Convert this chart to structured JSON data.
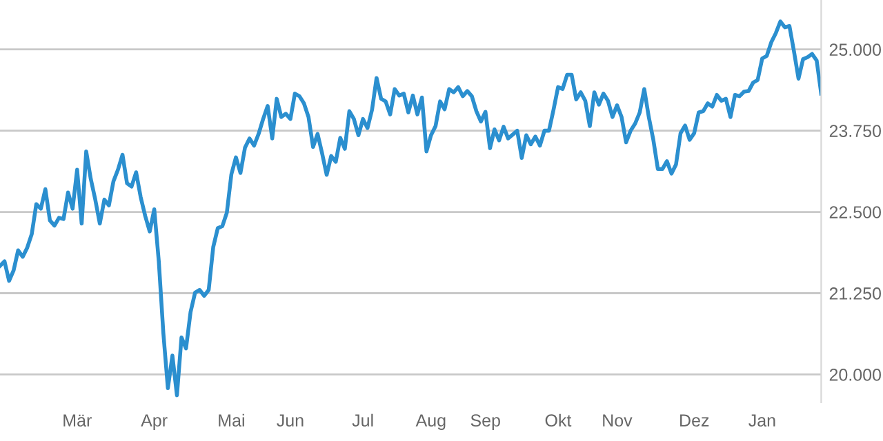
{
  "chart_data": {
    "type": "line",
    "categories": [
      null,
      null,
      null,
      null,
      null,
      null,
      null,
      null,
      null,
      null,
      null,
      null,
      null,
      null,
      null,
      null,
      null,
      "Mär",
      null,
      null,
      null,
      null,
      null,
      null,
      null,
      null,
      null,
      null,
      null,
      null,
      null,
      null,
      null,
      null,
      "Apr",
      null,
      null,
      null,
      null,
      null,
      null,
      null,
      null,
      null,
      null,
      null,
      null,
      null,
      null,
      null,
      null,
      "Mai",
      null,
      null,
      null,
      null,
      null,
      null,
      null,
      null,
      null,
      null,
      null,
      null,
      "Jun",
      null,
      null,
      null,
      null,
      null,
      null,
      null,
      null,
      null,
      null,
      null,
      null,
      null,
      null,
      null,
      "Jul",
      null,
      null,
      null,
      null,
      null,
      null,
      null,
      null,
      null,
      null,
      null,
      null,
      null,
      null,
      "Aug",
      null,
      null,
      null,
      null,
      null,
      null,
      null,
      null,
      null,
      null,
      null,
      "Sep",
      null,
      null,
      null,
      null,
      null,
      null,
      null,
      null,
      null,
      null,
      null,
      null,
      null,
      null,
      null,
      "Okt",
      null,
      null,
      null,
      null,
      null,
      null,
      null,
      null,
      null,
      null,
      null,
      null,
      "Nov",
      null,
      null,
      null,
      null,
      null,
      null,
      null,
      null,
      null,
      null,
      null,
      null,
      null,
      null,
      null,
      null,
      "Dez",
      null,
      null,
      null,
      null,
      null,
      null,
      null,
      null,
      null,
      null,
      null,
      null,
      null,
      null,
      "Jan",
      null,
      null,
      null,
      null,
      null,
      null,
      null,
      null,
      null,
      null,
      null,
      null,
      null
    ],
    "series": [
      {
        "color": "#2b8fcf",
        "values": [
          21670,
          21740,
          21440,
          21600,
          21910,
          21810,
          21950,
          22160,
          22620,
          22550,
          22850,
          22370,
          22290,
          22410,
          22390,
          22800,
          22550,
          23150,
          22320,
          23430,
          23010,
          22690,
          22320,
          22690,
          22600,
          22970,
          23150,
          23380,
          22940,
          22890,
          23110,
          22730,
          22440,
          22200,
          22540,
          21740,
          20640,
          19790,
          20290,
          19680,
          20570,
          20400,
          20960,
          21260,
          21300,
          21210,
          21300,
          21960,
          22250,
          22280,
          22490,
          23080,
          23340,
          23100,
          23490,
          23630,
          23520,
          23700,
          23930,
          24130,
          23630,
          24240,
          23960,
          24010,
          23930,
          24320,
          24280,
          24170,
          23960,
          23500,
          23700,
          23400,
          23070,
          23360,
          23270,
          23640,
          23470,
          24050,
          23930,
          23680,
          23930,
          23790,
          24070,
          24560,
          24240,
          24200,
          24000,
          24390,
          24290,
          24320,
          24030,
          24290,
          24000,
          24260,
          23430,
          23680,
          23820,
          24200,
          24080,
          24390,
          24340,
          24420,
          24280,
          24360,
          24280,
          24050,
          23890,
          24040,
          23480,
          23770,
          23600,
          23810,
          23630,
          23690,
          23750,
          23330,
          23680,
          23540,
          23660,
          23520,
          23750,
          23750,
          24070,
          24420,
          24390,
          24610,
          24610,
          24230,
          24340,
          24210,
          23820,
          24340,
          24150,
          24320,
          24210,
          23960,
          24140,
          23960,
          23570,
          23750,
          23860,
          24030,
          24390,
          23960,
          23610,
          23160,
          23160,
          23280,
          23090,
          23230,
          23710,
          23830,
          23610,
          23710,
          24030,
          24050,
          24170,
          24120,
          24300,
          24210,
          24240,
          23960,
          24300,
          24280,
          24350,
          24360,
          24490,
          24530,
          24860,
          24900,
          25110,
          25250,
          25430,
          25340,
          25360,
          24970,
          24550,
          24850,
          24880,
          24930,
          24830,
          24320
        ]
      }
    ],
    "ylim": [
      19570,
      25760
    ],
    "yticks": [
      {
        "value": 20000,
        "label": "20.000"
      },
      {
        "value": 21250,
        "label": "21.250"
      },
      {
        "value": 22500,
        "label": "22.500"
      },
      {
        "value": 23750,
        "label": "23.750"
      },
      {
        "value": 25000,
        "label": "25.000"
      }
    ],
    "grid": "y",
    "marker": "none",
    "line_style": "solid"
  }
}
